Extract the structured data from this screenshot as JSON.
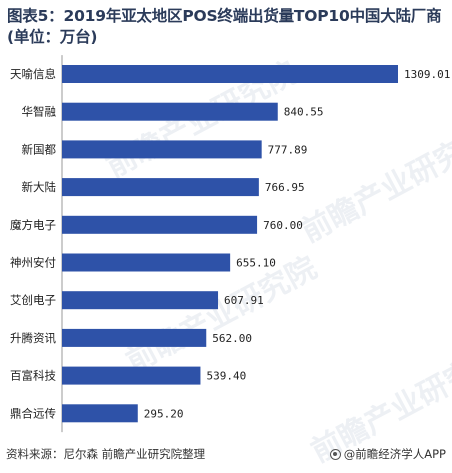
{
  "title": "图表5：2019年亚太地区POS终端出货量TOP10中国大陆厂商(单位：万台)",
  "source": "资料来源：尼尔森  前瞻产业研究院整理",
  "brand": "@前瞻经济学人APP",
  "watermark": "前瞻产业研究院",
  "colors": {
    "bar": "#2e52a8",
    "title": "#2b3b5a"
  },
  "chart_data": {
    "type": "bar",
    "orientation": "horizontal",
    "title": "图表5：2019年亚太地区POS终端出货量TOP10中国大陆厂商(单位：万台)",
    "categories": [
      "天喻信息",
      "华智融",
      "新国都",
      "新大陆",
      "魔方电子",
      "神州安付",
      "艾创电子",
      "升腾资讯",
      "百富科技",
      "鼎合远传"
    ],
    "values": [
      1309.01,
      840.55,
      777.89,
      766.95,
      760.0,
      655.1,
      607.91,
      562.0,
      539.4,
      295.2
    ],
    "value_labels": [
      "1309.01",
      "840.55",
      "777.89",
      "766.95",
      "760.00",
      "655.10",
      "607.91",
      "562.00",
      "539.40",
      "295.20"
    ],
    "xlim": [
      0,
      1309.01
    ],
    "grid": false,
    "legend": "none"
  }
}
